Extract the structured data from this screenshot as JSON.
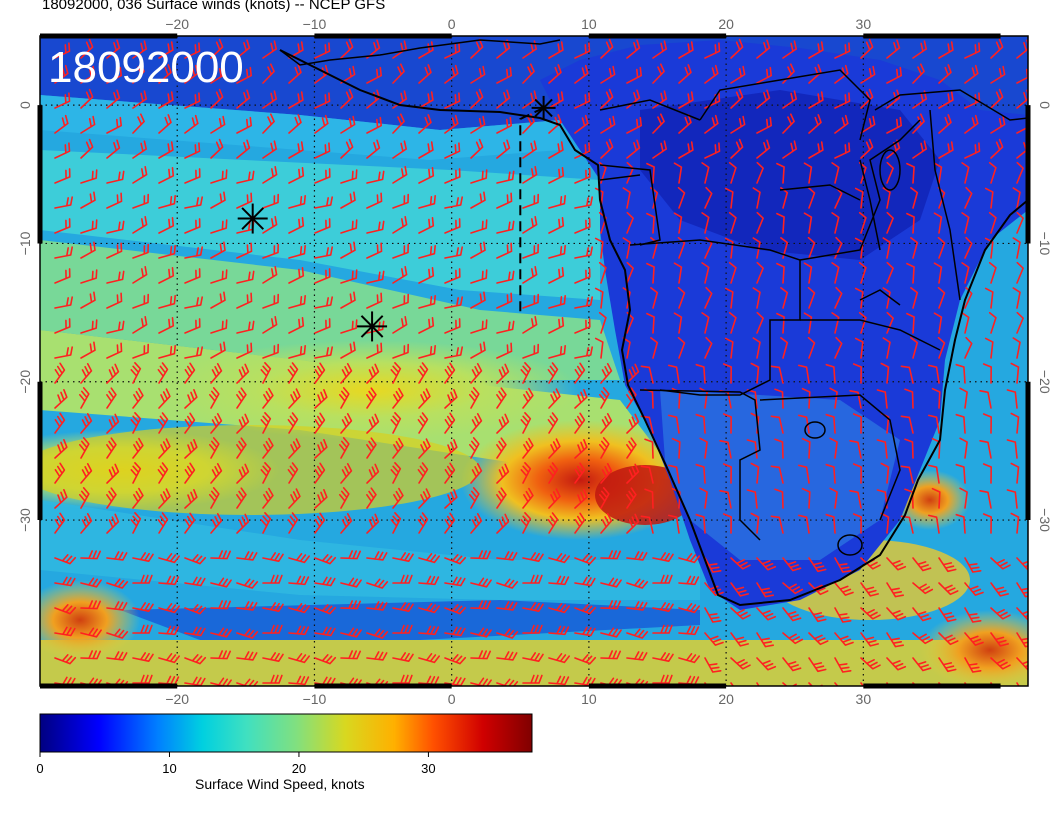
{
  "header": {
    "title": "18092000, 036 Surface winds (knots) -- NCEP GFS"
  },
  "map": {
    "timestamp_label": "18092000",
    "lon_range": [
      -30,
      42
    ],
    "lat_range": [
      -42,
      5
    ],
    "lon_ticks": [
      -20,
      -10,
      0,
      10,
      20,
      30
    ],
    "lat_ticks": [
      0,
      -10,
      -20,
      -30
    ],
    "lon_tick_labels": [
      "−20",
      "−10",
      "0",
      "10",
      "20",
      "30"
    ],
    "lat_tick_labels": [
      "0",
      "−10",
      "−20",
      "−30"
    ],
    "gridlines": true,
    "barb_color": "#ff2020",
    "markers": [
      {
        "lon": -14.5,
        "lat": -8.2
      },
      {
        "lon": -5.8,
        "lat": -16.0
      },
      {
        "lon": 6.7,
        "lat": -0.2
      }
    ],
    "dashed_track": [
      [
        6.7,
        -0.2
      ],
      [
        5.0,
        -1.0
      ],
      [
        5.0,
        -15.0
      ]
    ]
  },
  "colorbar": {
    "label": "Surface Wind Speed, knots",
    "range": [
      0,
      38
    ],
    "ticks": [
      0,
      10,
      20,
      30
    ],
    "tick_labels": [
      "0",
      "10",
      "20",
      "30"
    ],
    "colors": [
      "#000080",
      "#0000ff",
      "#0080ff",
      "#00d0e0",
      "#40e0c0",
      "#80e080",
      "#d8d820",
      "#ffb000",
      "#ff5000",
      "#d00000",
      "#800000"
    ]
  }
}
